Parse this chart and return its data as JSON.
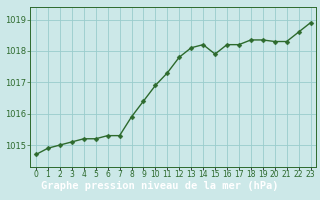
{
  "x": [
    0,
    1,
    2,
    3,
    4,
    5,
    6,
    7,
    8,
    9,
    10,
    11,
    12,
    13,
    14,
    15,
    16,
    17,
    18,
    19,
    20,
    21,
    22,
    23
  ],
  "y": [
    1014.7,
    1014.9,
    1015.0,
    1015.1,
    1015.2,
    1015.2,
    1015.3,
    1015.3,
    1015.9,
    1016.4,
    1016.9,
    1017.3,
    1017.8,
    1018.1,
    1018.2,
    1017.9,
    1018.2,
    1018.2,
    1018.35,
    1018.35,
    1018.3,
    1018.3,
    1018.6,
    1018.9
  ],
  "line_color": "#2d6a2d",
  "marker": "D",
  "marker_size": 2.5,
  "bg_color": "#cce8e8",
  "grid_color": "#99cccc",
  "title": "Graphe pression niveau de la mer (hPa)",
  "title_color": "#ffffff",
  "title_bg_color": "#2d6a2d",
  "title_fontsize": 7.5,
  "ylim": [
    1014.3,
    1019.4
  ],
  "yticks": [
    1015,
    1016,
    1017,
    1018,
    1019
  ],
  "xtick_labels": [
    "0",
    "1",
    "2",
    "3",
    "4",
    "5",
    "6",
    "7",
    "8",
    "9",
    "10",
    "11",
    "12",
    "13",
    "14",
    "15",
    "16",
    "17",
    "18",
    "19",
    "20",
    "21",
    "22",
    "23"
  ],
  "tick_color": "#2d6a2d",
  "tick_fontsize": 5.5,
  "ytick_fontsize": 6,
  "spine_color": "#2d6a2d",
  "linewidth": 1.0
}
